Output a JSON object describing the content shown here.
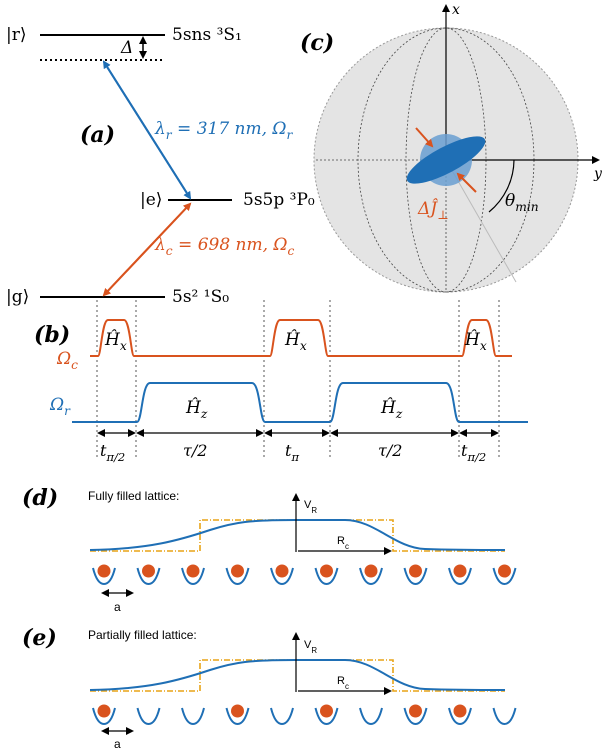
{
  "colors": {
    "blue": "#1f6fb5",
    "orange": "#d9531e",
    "gold": "#e8a317",
    "sphere": "#e4e4e4",
    "black": "#000000"
  },
  "panel_a": {
    "label": "(a)",
    "ket_r": "|r⟩",
    "ket_e": "|e⟩",
    "ket_g": "|g⟩",
    "state_r": "5sns ³S₁",
    "state_e": "5s5p ³P₀",
    "state_g": "5s² ¹S₀",
    "detuning": "Δ",
    "rydberg_transition": "λr = 317 nm, Ωr",
    "clock_transition": "λc = 698 nm, Ωc"
  },
  "panel_b": {
    "label": "(b)",
    "omega_c": "Ωc",
    "omega_r": "Ωr",
    "Hx": "Ĥx",
    "Hz": "Ĥz",
    "intervals": [
      "tπ/2",
      "τ/2",
      "tπ",
      "τ/2",
      "tπ/2"
    ]
  },
  "panel_c": {
    "label": "(c)",
    "axis_x": "x",
    "axis_y": "y",
    "squeeze_label": "ΔĴ⊥",
    "angle_label": "θmin"
  },
  "panel_d": {
    "label": "(d)",
    "title": "Fully filled lattice:",
    "vr": "VR",
    "rc": "Rc",
    "spacing": "a",
    "sites": 10,
    "filled": [
      1,
      1,
      1,
      1,
      1,
      1,
      1,
      1,
      1,
      1
    ]
  },
  "panel_e": {
    "label": "(e)",
    "title": "Partially filled lattice:",
    "vr": "VR",
    "rc": "Rc",
    "spacing": "a",
    "sites": 10,
    "filled": [
      1,
      0,
      0,
      1,
      0,
      1,
      0,
      1,
      1,
      0
    ]
  }
}
